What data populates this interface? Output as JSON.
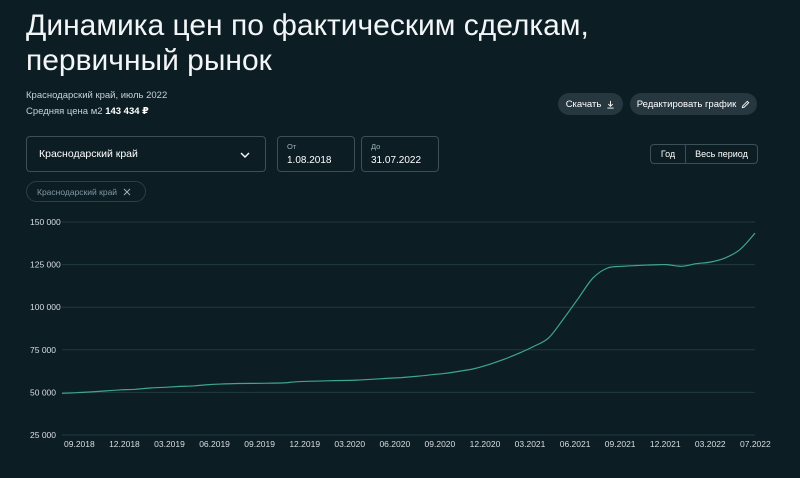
{
  "header": {
    "title": "Динамика цен по фактическим сделкам, первичный рынок",
    "subtitle": "Краснодарский край, июль 2022",
    "avg_label": "Средняя цена м2",
    "avg_value": "143 434 ₽"
  },
  "actions": {
    "download_label": "Скачать",
    "edit_label": "Редактировать график"
  },
  "filters": {
    "region": "Краснодарский край",
    "from_label": "От",
    "from_value": "1.08.2018",
    "to_label": "До",
    "to_value": "31.07.2022",
    "period_year": "Год",
    "period_all": "Весь период",
    "chip": "Краснодарский край"
  },
  "colors": {
    "background": "#0d1d24",
    "line": "#3fa591",
    "grid": "#1f3a40"
  },
  "chart_data": {
    "type": "line",
    "ylim": [
      25000,
      150000
    ],
    "yticks": [
      25000,
      50000,
      75000,
      100000,
      125000,
      150000
    ],
    "ytick_labels": [
      "25 000",
      "50 000",
      "75 000",
      "100 000",
      "125 000",
      "150 000"
    ],
    "xtick_labels": [
      "09.2018",
      "12.2018",
      "03.2019",
      "06.2019",
      "09.2019",
      "12.2019",
      "03.2020",
      "06.2020",
      "09.2020",
      "12.2020",
      "03.2021",
      "06.2021",
      "09.2021",
      "12.2021",
      "03.2022",
      "07.2022"
    ],
    "series": [
      {
        "x": [
          "2018-08",
          "2018-09",
          "2018-10",
          "2018-11",
          "2018-12",
          "2019-01",
          "2019-02",
          "2019-03",
          "2019-04",
          "2019-05",
          "2019-06",
          "2019-07",
          "2019-08",
          "2019-09",
          "2019-10",
          "2019-11",
          "2019-12",
          "2020-01",
          "2020-02",
          "2020-03",
          "2020-04",
          "2020-05",
          "2020-06",
          "2020-07",
          "2020-08",
          "2020-09",
          "2020-10",
          "2020-11",
          "2020-12",
          "2021-01",
          "2021-02",
          "2021-03",
          "2021-04",
          "2021-05",
          "2021-06",
          "2021-07",
          "2021-08",
          "2021-09",
          "2021-10",
          "2021-11",
          "2021-12",
          "2022-01",
          "2022-02",
          "2022-03",
          "2022-04",
          "2022-05",
          "2022-06",
          "2022-07"
        ],
        "values": [
          49500,
          49800,
          50300,
          50900,
          51500,
          51800,
          52600,
          53000,
          53500,
          53900,
          54600,
          55000,
          55200,
          55300,
          55400,
          55600,
          56300,
          56600,
          56800,
          57000,
          57200,
          57700,
          58200,
          58700,
          59400,
          60300,
          61200,
          62500,
          64000,
          66500,
          69500,
          73000,
          77000,
          82000,
          93000,
          105000,
          117000,
          123000,
          124000,
          124500,
          124800,
          125000,
          124000,
          125500,
          126500,
          129000,
          134000,
          143434
        ]
      }
    ]
  }
}
